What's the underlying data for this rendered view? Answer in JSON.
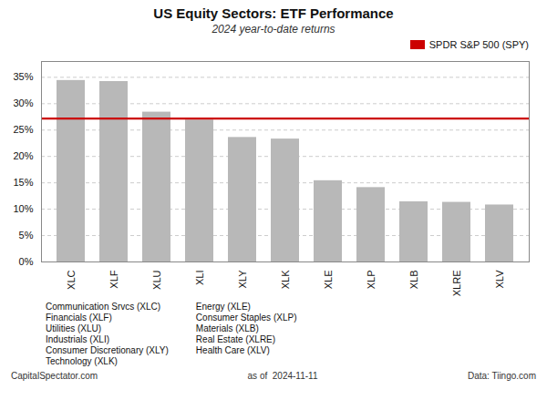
{
  "chart_data": {
    "type": "bar",
    "title": "US Equity Sectors: ETF Performance",
    "subtitle": "2024 year-to-date returns",
    "categories": [
      "XLC",
      "XLF",
      "XLU",
      "XLI",
      "XLY",
      "XLK",
      "XLE",
      "XLP",
      "XLB",
      "XLRE",
      "XLV"
    ],
    "values": [
      34.4,
      34.2,
      28.4,
      26.9,
      23.6,
      23.3,
      15.4,
      14.1,
      11.4,
      11.3,
      10.8
    ],
    "color": "#b8b8b8",
    "ylim": [
      0,
      38
    ],
    "yticks": [
      {
        "value": 0,
        "label": "0%"
      },
      {
        "value": 5,
        "label": "5%"
      },
      {
        "value": 10,
        "label": "10%"
      },
      {
        "value": 15,
        "label": "15%"
      },
      {
        "value": 20,
        "label": "20%"
      },
      {
        "value": 25,
        "label": "25%"
      },
      {
        "value": 30,
        "label": "30%"
      },
      {
        "value": 35,
        "label": "35%"
      }
    ],
    "grid": true,
    "reference_line": {
      "name": "SPDR S&P 500 (SPY)",
      "value": 27.2,
      "color": "#cc0000"
    },
    "legend": "upper right",
    "annotations": [
      [
        "Communication Srvcs (XLC)",
        "Financials (XLF)",
        "Utilities (XLU)",
        "Industrials (XLI)",
        "Consumer Discretionary (XLY)",
        "Technology (XLK)"
      ],
      [
        "Energy (XLE)",
        "Consumer Staples (XLP)",
        "Materials (XLB)",
        "Real Estate (XLRE)",
        "Health Care (XLV)"
      ]
    ],
    "footer": [
      "CapitalSpectator.com",
      "as of  2024-11-11",
      "Data: Tiingo.com"
    ]
  }
}
